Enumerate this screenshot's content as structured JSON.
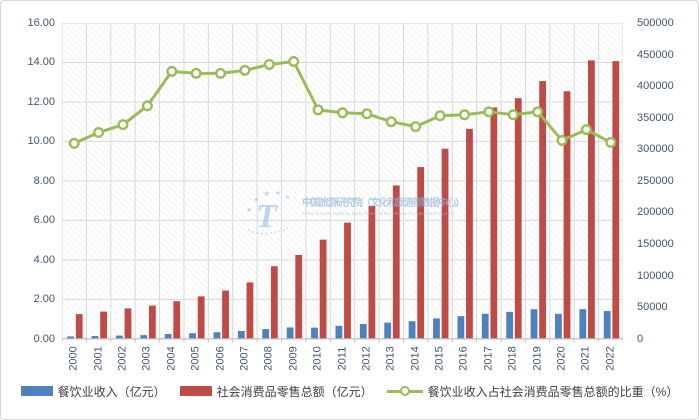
{
  "chart_data": {
    "type": "combo-bar-line",
    "categories": [
      "2000",
      "2001",
      "2002",
      "2003",
      "2004",
      "2005",
      "2006",
      "2007",
      "2008",
      "2009",
      "2010",
      "2011",
      "2012",
      "2013",
      "2014",
      "2015",
      "2016",
      "2017",
      "2018",
      "2019",
      "2020",
      "2021",
      "2022"
    ],
    "series": [
      {
        "name": "餐饮业收入（亿元）",
        "type": "bar",
        "axis": "right",
        "color": "#4f81bd",
        "values": [
          3753,
          4369,
          5092,
          5769,
          7486,
          8887,
          10345,
          12352,
          15404,
          17998,
          17648,
          20543,
          23448,
          25569,
          27860,
          32310,
          35799,
          39644,
          42716,
          46721,
          39527,
          46895,
          43941
        ]
      },
      {
        "name": "社会消费品零售总额（亿元）",
        "type": "bar",
        "axis": "right",
        "color": "#bf4b47",
        "values": [
          39106,
          43055,
          48136,
          52516,
          59501,
          67177,
          76410,
          89210,
          114830,
          132678,
          156998,
          183919,
          210307,
          242843,
          271896,
          300931,
          332316,
          366262,
          380987,
          408017,
          391981,
          440823,
          439733
        ]
      },
      {
        "name": "餐饮业收入占社会消费品零售总额的比重（%）",
        "type": "line",
        "axis": "left",
        "color": "#9bbb59",
        "marker": "circle",
        "values": [
          9.9,
          10.45,
          10.85,
          11.8,
          13.55,
          13.45,
          13.45,
          13.6,
          13.9,
          14.05,
          11.6,
          11.45,
          11.4,
          11.0,
          10.75,
          11.3,
          11.35,
          11.5,
          11.35,
          11.5,
          10.05,
          10.6,
          9.95
        ]
      }
    ],
    "left_axis": {
      "min": 0,
      "max": 16,
      "step": 2,
      "labels": [
        "16.00",
        "14.00",
        "12.00",
        "10.00",
        "8.00",
        "6.00",
        "4.00",
        "2.00",
        "0.00"
      ]
    },
    "right_axis": {
      "min": 0,
      "max": 500000,
      "step": 50000,
      "labels": [
        "500000",
        "450000",
        "400000",
        "350000",
        "300000",
        "250000",
        "200000",
        "150000",
        "100000",
        "50000",
        "0"
      ]
    },
    "grid": true,
    "plot_fill": "diagonal-hatch",
    "legend_position": "bottom"
  },
  "colors": {
    "gridline": "#d9d9d9",
    "axis_line": "#bfbfbf",
    "hatch": "#ebebeb",
    "axis_text": "#44546a",
    "legend_text": "#404040",
    "watermark": "#8fb3d9"
  },
  "watermark": {
    "cn": "中国旅游研究院（文化和旅游部数据中心）",
    "en": "China Tourism Academy (Data Center of the Ministry of Culture and Tourism)"
  }
}
